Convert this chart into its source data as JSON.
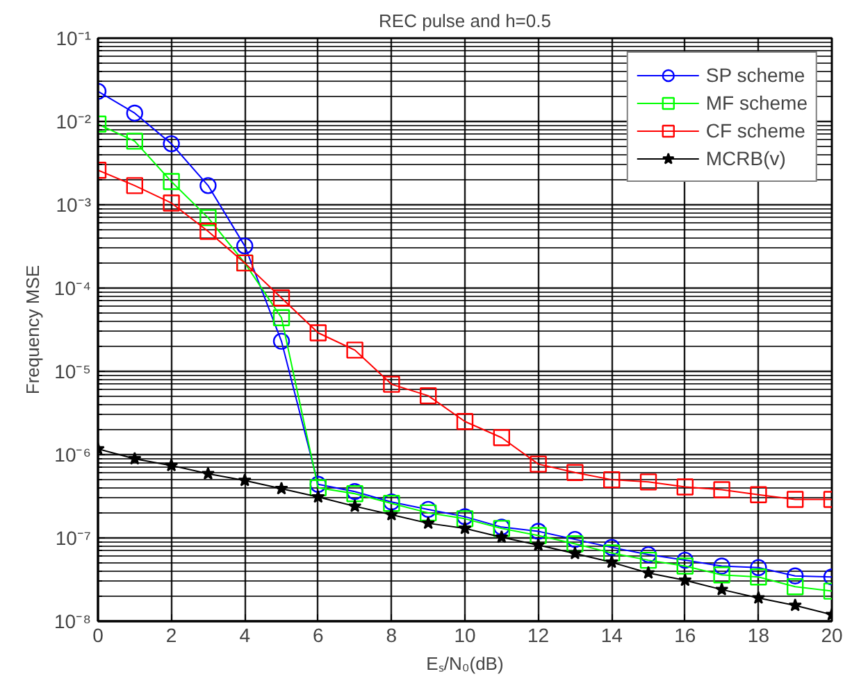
{
  "chart_data": {
    "type": "line",
    "title": "REC pulse and h=0.5",
    "xlabel": "Eₛ/N₀(dB)",
    "ylabel": "Frequency MSE",
    "x": [
      0,
      1,
      2,
      3,
      4,
      5,
      6,
      7,
      8,
      9,
      10,
      11,
      12,
      13,
      14,
      15,
      16,
      17,
      18,
      19,
      20
    ],
    "log": true,
    "grid": true,
    "legend": "top right",
    "xlim": [
      0,
      20
    ],
    "xticks": [
      0,
      2,
      4,
      6,
      8,
      10,
      12,
      14,
      16,
      18,
      20
    ],
    "ylim": [
      1e-08,
      0.1
    ],
    "yticks": [
      {
        "value": 1e-08,
        "label": "10⁻⁸"
      },
      {
        "value": 1e-07,
        "label": "10⁻⁷"
      },
      {
        "value": 1e-06,
        "label": "10⁻⁶"
      },
      {
        "value": 1e-05,
        "label": "10⁻⁵"
      },
      {
        "value": 0.0001,
        "label": "10⁻⁴"
      },
      {
        "value": 0.001,
        "label": "10⁻³"
      },
      {
        "value": 0.01,
        "label": "10⁻²"
      },
      {
        "value": 0.1,
        "label": "10⁻¹"
      }
    ],
    "series": [
      {
        "name": "SP scheme",
        "color": "#0000ff",
        "marker": "circle",
        "values": [
          0.023,
          0.0126,
          0.0054,
          0.0017,
          0.00032,
          2.3e-05,
          4.4e-07,
          3.6e-07,
          2.7e-07,
          2.2e-07,
          1.8e-07,
          1.35e-07,
          1.2e-07,
          9.6e-08,
          7.7e-08,
          6.3e-08,
          5.4e-08,
          4.6e-08,
          4.4e-08,
          3.5e-08,
          3.4e-08
        ]
      },
      {
        "name": "MF scheme",
        "color": "#00ff00",
        "marker": "square",
        "values": [
          0.0093,
          0.0058,
          0.0019,
          0.0007,
          0.0002,
          4.4e-05,
          4e-07,
          3.4e-07,
          2.6e-07,
          2e-07,
          1.7e-07,
          1.3e-07,
          1.07e-07,
          8.5e-08,
          6.6e-08,
          5.4e-08,
          4.6e-08,
          3.6e-08,
          3.4e-08,
          2.6e-08,
          2.3e-08
        ]
      },
      {
        "name": "CF scheme",
        "color": "#ff0000",
        "marker": "square",
        "values": [
          0.0026,
          0.0017,
          0.00105,
          0.00048,
          0.0002,
          7.6e-05,
          2.9e-05,
          1.8e-05,
          7e-06,
          5.1e-06,
          2.5e-06,
          1.6e-06,
          7.7e-07,
          6.1e-07,
          5e-07,
          4.7e-07,
          4.1e-07,
          3.8e-07,
          3.3e-07,
          2.9e-07,
          2.9e-07
        ]
      },
      {
        "name": "MCRB(v)",
        "color": "#000000",
        "marker": "star",
        "values": [
          1.17e-06,
          8.9e-07,
          7.4e-07,
          5.9e-07,
          4.9e-07,
          3.9e-07,
          3.1e-07,
          2.4e-07,
          1.9e-07,
          1.5e-07,
          1.3e-07,
          1.02e-07,
          8.2e-08,
          6.5e-08,
          5.1e-08,
          3.8e-08,
          3.1e-08,
          2.4e-08,
          1.9e-08,
          1.55e-08,
          1.2e-08
        ]
      }
    ]
  }
}
